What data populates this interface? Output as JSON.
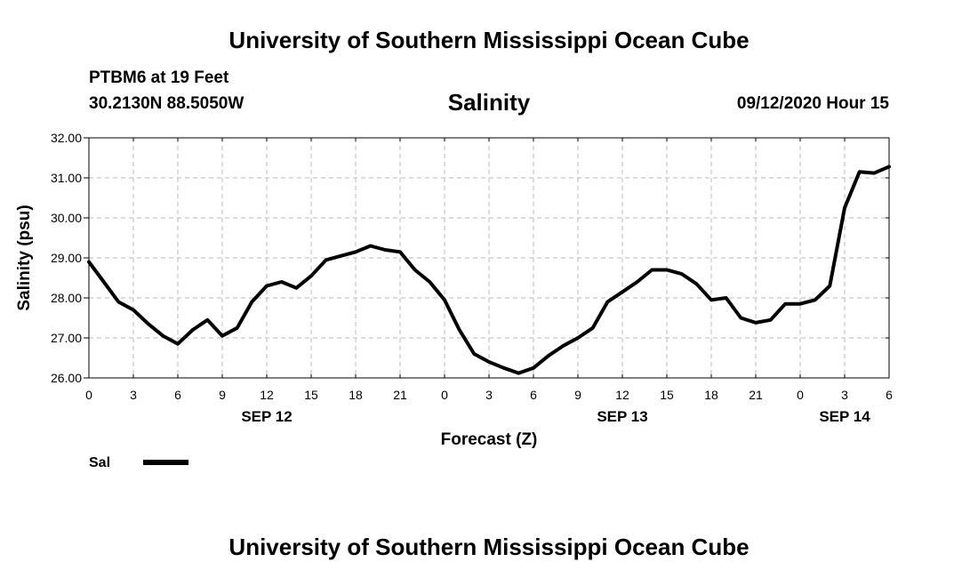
{
  "header": {
    "title": "University of Southern Mississippi Ocean Cube",
    "station": "PTBM6 at 19 Feet",
    "coords": "30.2130N 88.5050W",
    "datetime": "09/12/2020 Hour 15"
  },
  "footer": {
    "title": "University of Southern Mississippi Ocean Cube"
  },
  "chart_data": {
    "type": "line",
    "title": "Salinity",
    "xlabel": "Forecast (Z)",
    "ylabel": "Salinity (psu)",
    "ylim": [
      26.0,
      32.0
    ],
    "yticks": [
      "26.00",
      "27.00",
      "28.00",
      "29.00",
      "30.00",
      "31.00",
      "32.00"
    ],
    "x_unit": "hours from 2020-09-12 00Z",
    "xlim": [
      0,
      54
    ],
    "xtick_labels": [
      "0",
      "3",
      "6",
      "9",
      "12",
      "15",
      "18",
      "21",
      "0",
      "3",
      "6",
      "9",
      "12",
      "15",
      "18",
      "21",
      "0",
      "3",
      "6"
    ],
    "date_labels": [
      {
        "label": "SEP 12",
        "hour": 12
      },
      {
        "label": "SEP 13",
        "hour": 36
      },
      {
        "label": "SEP 14",
        "hour": 51
      }
    ],
    "grid": true,
    "legend_position": "bottom-left",
    "series": [
      {
        "name": "Sal",
        "color": "#000000",
        "x": [
          0,
          1,
          2,
          3,
          4,
          5,
          6,
          7,
          8,
          9,
          10,
          11,
          12,
          13,
          14,
          15,
          16,
          17,
          18,
          19,
          20,
          21,
          22,
          23,
          24,
          25,
          26,
          27,
          28,
          29,
          30,
          31,
          32,
          33,
          34,
          35,
          36,
          37,
          38,
          39,
          40,
          41,
          42,
          43,
          44,
          45,
          46,
          47,
          48,
          49,
          50,
          51,
          52,
          53,
          54
        ],
        "values": [
          28.9,
          28.4,
          27.9,
          27.7,
          27.35,
          27.05,
          26.85,
          27.2,
          27.45,
          27.05,
          27.25,
          27.9,
          28.3,
          28.4,
          28.25,
          28.55,
          28.95,
          29.05,
          29.15,
          29.3,
          29.2,
          29.15,
          28.7,
          28.4,
          27.95,
          27.2,
          26.6,
          26.4,
          26.25,
          26.12,
          26.25,
          26.55,
          26.8,
          27.0,
          27.25,
          27.9,
          28.15,
          28.4,
          28.7,
          28.7,
          28.6,
          28.35,
          27.95,
          28.0,
          27.5,
          27.38,
          27.45,
          27.85,
          27.85,
          27.95,
          28.3,
          30.25,
          31.15,
          31.12,
          31.28
        ]
      }
    ]
  }
}
